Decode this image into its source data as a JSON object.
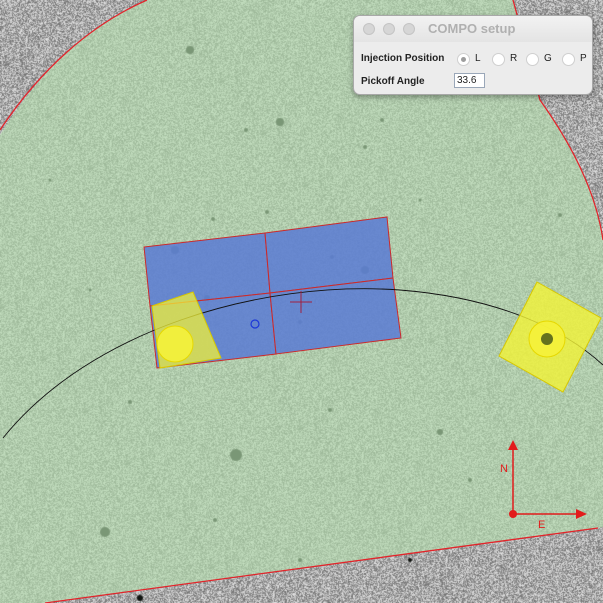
{
  "dialog": {
    "title": "COMPO setup",
    "injection_label": "Injection Position",
    "positions": [
      {
        "label": "L",
        "selected": true
      },
      {
        "label": "R",
        "selected": false
      },
      {
        "label": "G",
        "selected": false
      },
      {
        "label": "P",
        "selected": false
      }
    ],
    "angle_label": "Pickoff Angle",
    "angle_value": "33.6"
  },
  "compass": {
    "north": "N",
    "east": "E"
  },
  "colors": {
    "field_fill": "#b4ddae",
    "field_edge": "#e2242a",
    "detector_fill": "#5b7bd3",
    "detector_edge": "#cc2a2a",
    "pickoff_fill": "#f2f237",
    "compass": "#e21b1b"
  }
}
